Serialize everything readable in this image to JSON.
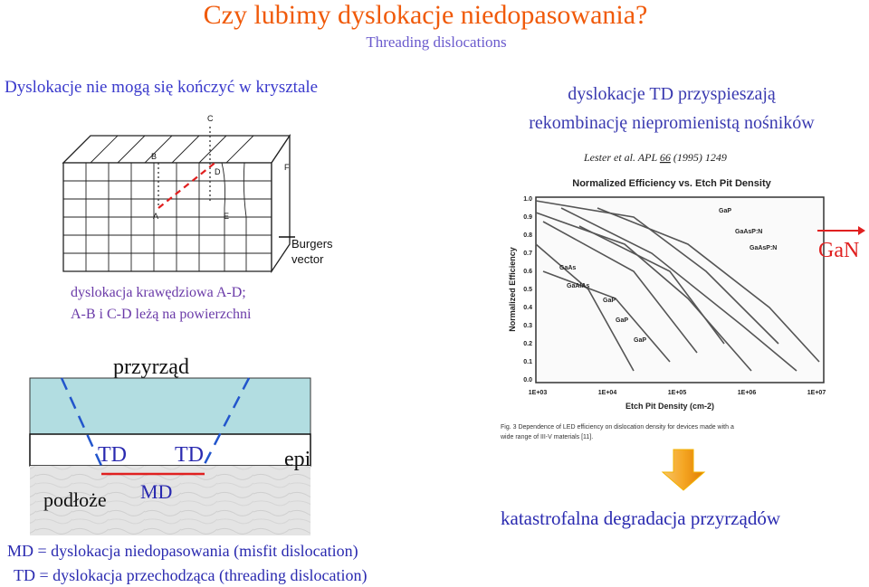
{
  "header": {
    "title": "Czy lubimy dyslokacje niedopasowania?",
    "subtitle": "Threading dislocations"
  },
  "left": {
    "heading": "Dyslokacje nie mogą się kończyć w krysztale",
    "crystal_labels": [
      "C",
      "B",
      "D",
      "F",
      "A",
      "E"
    ],
    "burgers": [
      "Burgers",
      "vector"
    ],
    "caption": [
      "dyslokacja krawędziowa A-D;",
      "A-B i C-D leżą na powierzchni"
    ]
  },
  "device": {
    "title": "przyrząd",
    "td_left": "TD",
    "td_right": "TD",
    "epi": "epi",
    "substrate": "podłoże",
    "md": "MD",
    "legend": [
      "MD = dyslokacja niedopasowania (misfit dislocation)",
      "TD = dyslokacja przechodząca (threading dislocation)"
    ]
  },
  "right": {
    "heading": [
      "dyslokacje TD przyspieszają",
      "rekombinację niepromienistą nośników"
    ],
    "reference": {
      "authors": "Lester et al. APL ",
      "volume": "66",
      "rest": " (1995) 1249"
    },
    "gan": "GaN",
    "conclusion": "katastrofalna degradacja przyrządów"
  },
  "figure": {
    "title": "Normalized Efficiency vs. Etch Pit Density",
    "y_label": "Normalized Efficiency",
    "x_label": "Etch Pit Density (cm-2)",
    "y_ticks": [
      "1.0",
      "0.9",
      "0.8",
      "0.7",
      "0.6",
      "0.5",
      "0.4",
      "0.3",
      "0.2",
      "0.1",
      "0.0"
    ],
    "x_ticks": [
      "1E+03",
      "1E+04",
      "1E+05",
      "1E+06",
      "1E+07"
    ],
    "annotations": [
      "GaP",
      "GaAsP:N",
      "GaAsP:N",
      "GaAs",
      "GaAlAs",
      "GaP",
      "GaP",
      "GaP"
    ],
    "caption": [
      "Fig. 3  Dependence of LED efficiency on dislocation density for devices made with a",
      "wide range of III-V materials [11]."
    ]
  }
}
